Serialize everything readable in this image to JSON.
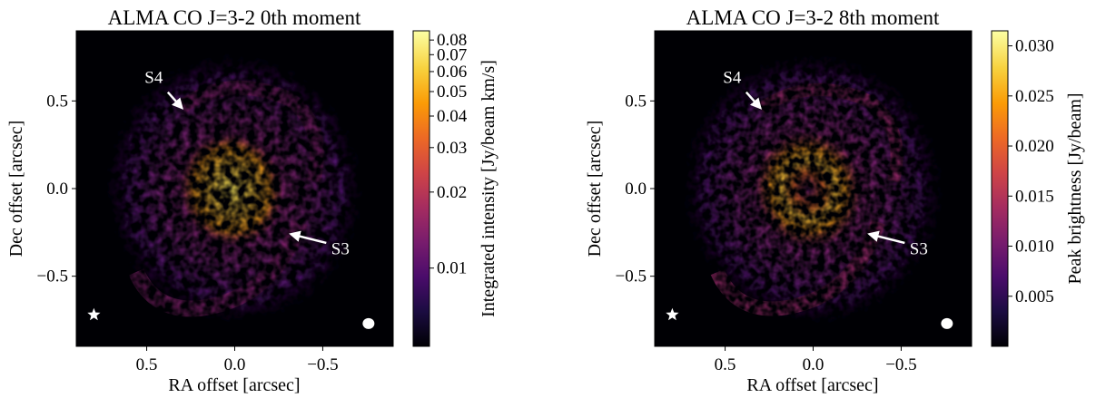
{
  "figure": {
    "panels": [
      {
        "title": "ALMA CO J=3-2 0th moment",
        "xlabel": "RA offset [arcsec]",
        "ylabel": "Dec offset [arcsec]",
        "xlim": [
          0.9,
          -0.9
        ],
        "ylim": [
          -0.9,
          0.9
        ],
        "xticks": [
          {
            "value": 0.5,
            "label": "0.5"
          },
          {
            "value": 0.0,
            "label": "0.0"
          },
          {
            "value": -0.5,
            "label": "−0.5"
          }
        ],
        "yticks": [
          {
            "value": 0.5,
            "label": "0.5"
          },
          {
            "value": 0.0,
            "label": "0.0"
          },
          {
            "value": -0.5,
            "label": "−0.5"
          }
        ],
        "colorbar": {
          "label": "Integrated intensity [Jy/beam km/s]",
          "scale": "log",
          "range": [
            0.0049,
            0.087
          ],
          "ticks": [
            {
              "value": 0.08,
              "label": "0.08"
            },
            {
              "value": 0.07,
              "label": "0.07"
            },
            {
              "value": 0.06,
              "label": "0.06"
            },
            {
              "value": 0.05,
              "label": "0.05"
            },
            {
              "value": 0.04,
              "label": "0.04"
            },
            {
              "value": 0.03,
              "label": "0.03"
            },
            {
              "value": 0.02,
              "label": "0.02"
            },
            {
              "value": 0.01,
              "label": "0.01"
            }
          ]
        },
        "annotations": [
          {
            "label": "S4",
            "label_at": [
              0.46,
              0.64
            ],
            "arrow_from": [
              0.38,
              0.55
            ],
            "arrow_to": [
              0.3,
              0.46
            ]
          },
          {
            "label": "S3",
            "label_at": [
              -0.6,
              -0.34
            ],
            "arrow_from": [
              -0.52,
              -0.31
            ],
            "arrow_to": [
              -0.32,
              -0.26
            ]
          }
        ],
        "star_at": [
          0.8,
          -0.72
        ],
        "beam_at": [
          -0.76,
          -0.77
        ],
        "inner_hole": false
      },
      {
        "title": "ALMA CO J=3-2 8th moment",
        "xlabel": "RA offset [arcsec]",
        "ylabel": "Dec offset [arcsec]",
        "xlim": [
          0.9,
          -0.9
        ],
        "ylim": [
          -0.9,
          0.9
        ],
        "xticks": [
          {
            "value": 0.5,
            "label": "0.5"
          },
          {
            "value": 0.0,
            "label": "0.0"
          },
          {
            "value": -0.5,
            "label": "−0.5"
          }
        ],
        "yticks": [
          {
            "value": 0.5,
            "label": "0.5"
          },
          {
            "value": 0.0,
            "label": "0.0"
          },
          {
            "value": -0.5,
            "label": "−0.5"
          }
        ],
        "colorbar": {
          "label": "Peak brightness [Jy/beam]",
          "scale": "linear",
          "range": [
            0.0,
            0.0315
          ],
          "ticks": [
            {
              "value": 0.03,
              "label": "0.030"
            },
            {
              "value": 0.025,
              "label": "0.025"
            },
            {
              "value": 0.02,
              "label": "0.020"
            },
            {
              "value": 0.015,
              "label": "0.015"
            },
            {
              "value": 0.01,
              "label": "0.010"
            },
            {
              "value": 0.005,
              "label": "0.005"
            }
          ]
        },
        "annotations": [
          {
            "label": "S4",
            "label_at": [
              0.46,
              0.64
            ],
            "arrow_from": [
              0.38,
              0.55
            ],
            "arrow_to": [
              0.3,
              0.46
            ]
          },
          {
            "label": "S3",
            "label_at": [
              -0.6,
              -0.34
            ],
            "arrow_from": [
              -0.52,
              -0.31
            ],
            "arrow_to": [
              -0.32,
              -0.26
            ]
          }
        ],
        "star_at": [
          0.8,
          -0.72
        ],
        "beam_at": [
          -0.76,
          -0.77
        ],
        "inner_hole": true
      }
    ],
    "colormap": [
      "#000004",
      "#1b0c41",
      "#4a0c6b",
      "#781c6d",
      "#a52c60",
      "#cf4446",
      "#ed6925",
      "#fb9b06",
      "#f7d13d",
      "#fcffa4"
    ],
    "annotation_color": "#ffffff"
  }
}
